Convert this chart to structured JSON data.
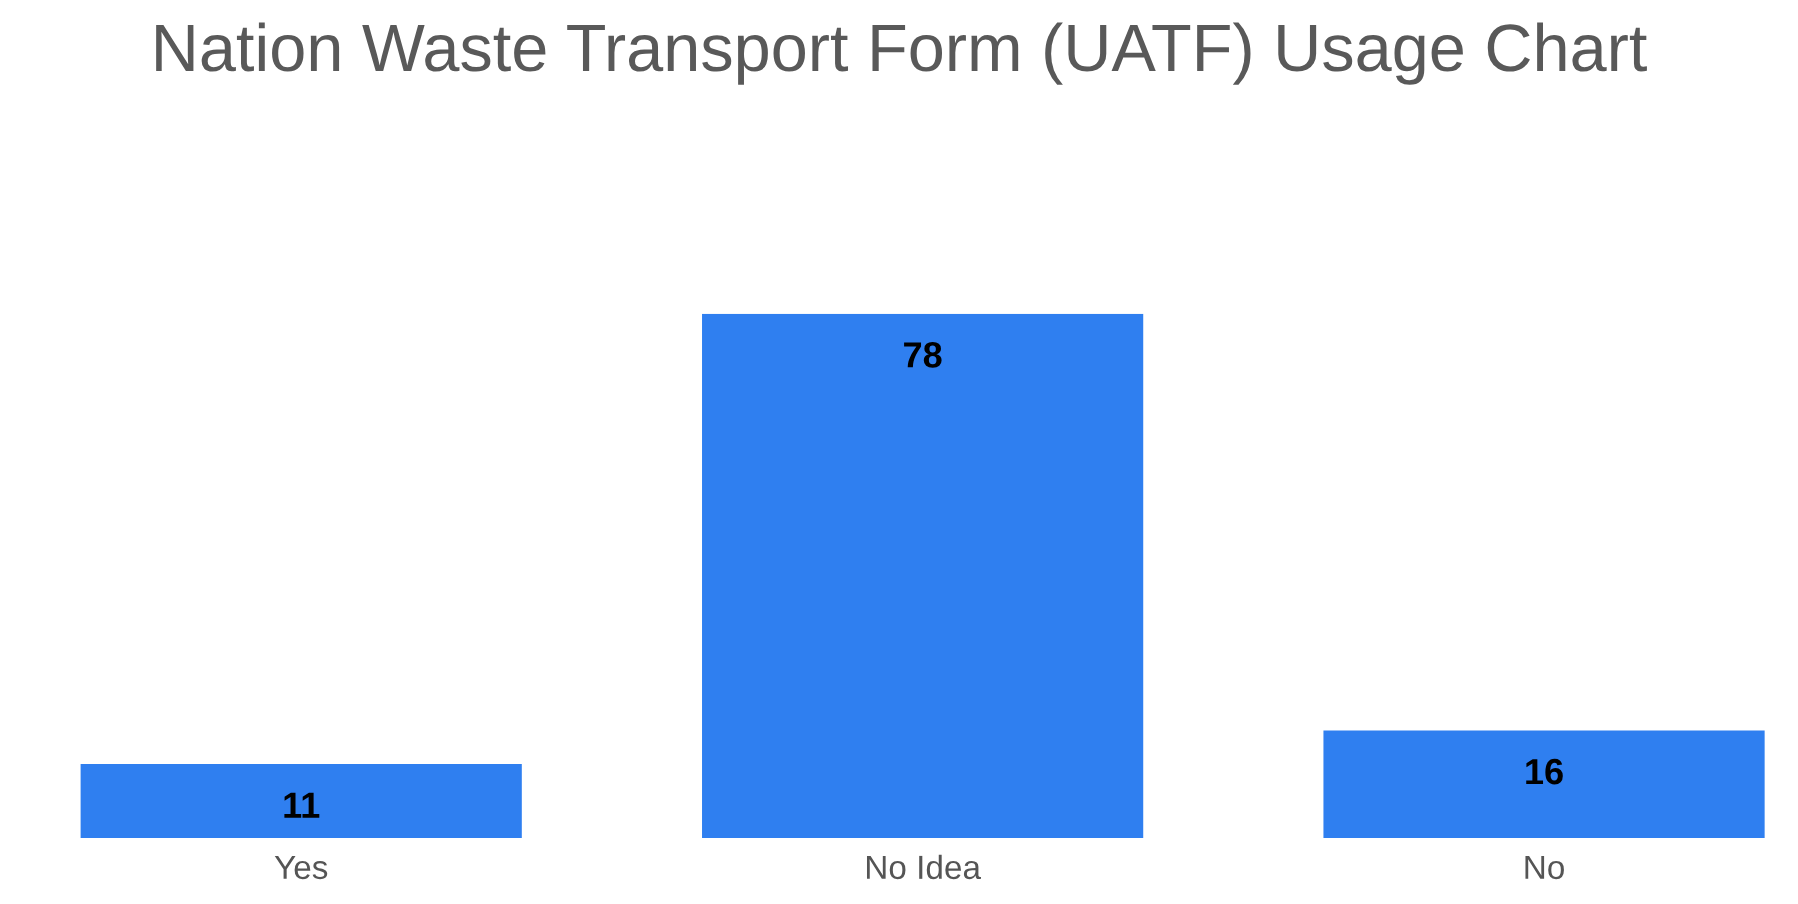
{
  "chart_data": {
    "type": "bar",
    "title": "Nation Waste Transport Form (UATF) Usage Chart",
    "categories": [
      "Yes",
      "No Idea",
      "No"
    ],
    "values": [
      11,
      78,
      16
    ],
    "color": "#2f7ff0",
    "data_labels": true
  }
}
